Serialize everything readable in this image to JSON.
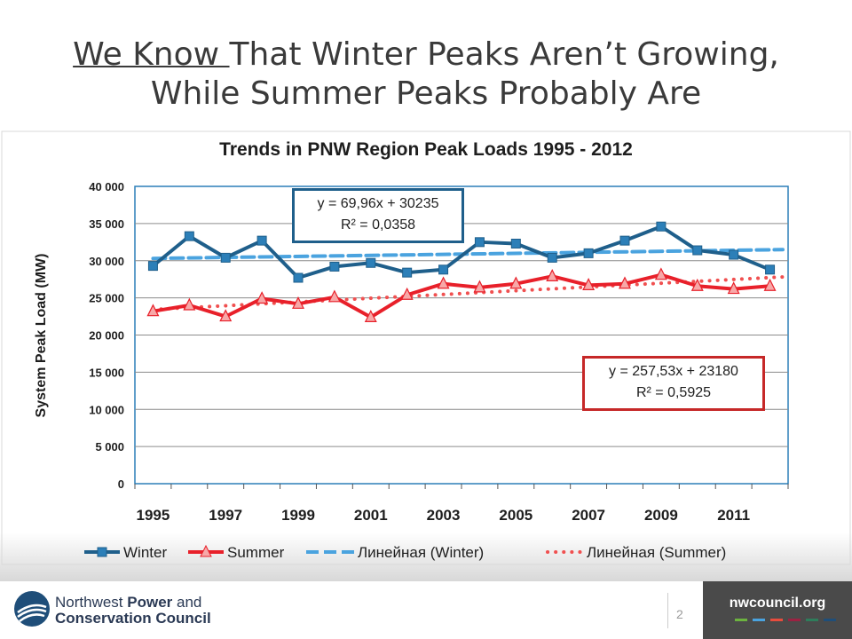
{
  "slide": {
    "title_underlined": "We Know ",
    "title_rest_line1": "That Winter Peaks Aren’t Growing,",
    "title_line2": "While Summer Peaks Probably Are",
    "page_number": "2"
  },
  "footer": {
    "org_line1_normal": "Northwest ",
    "org_line1_bold": "Power",
    "org_line1_end": " and",
    "org_line2": "Conservation Council",
    "url": "nwcouncil.org",
    "dash_colors": [
      "#6cb33f",
      "#4aa3df",
      "#e84c3d",
      "#9b2242",
      "#2e7d5b",
      "#1f4e79"
    ]
  },
  "annotations": {
    "winter_eq": "y = 69,96x + 30235",
    "winter_r2": "R² = 0,0358",
    "summer_eq": "y = 257,53x + 23180",
    "summer_r2": "R² = 0,5925"
  },
  "chart_data": {
    "type": "line",
    "title": "Trends in PNW Region Peak Loads 1995 - 2012",
    "ylabel": "System Peak Load (MW)",
    "xlabel": "",
    "ylim": [
      0,
      40000
    ],
    "yticks": [
      "0",
      "5 000",
      "10 000",
      "15 000",
      "20 000",
      "25 000",
      "30 000",
      "35 000",
      "40 000"
    ],
    "x": [
      1995,
      1996,
      1997,
      1998,
      1999,
      2000,
      2001,
      2002,
      2003,
      2004,
      2005,
      2006,
      2007,
      2008,
      2009,
      2010,
      2011,
      2012
    ],
    "xtick_labels": [
      "1995",
      "1997",
      "1999",
      "2001",
      "2003",
      "2005",
      "2007",
      "2009",
      "2011"
    ],
    "grid": true,
    "legend_position": "bottom",
    "series": [
      {
        "name": "Winter",
        "color": "#1f5f8b",
        "marker": "square",
        "values": [
          29300,
          33300,
          30400,
          32700,
          27700,
          29200,
          29700,
          28400,
          28800,
          32500,
          32300,
          30400,
          31000,
          32700,
          34600,
          31400,
          30800,
          28800
        ]
      },
      {
        "name": "Summer",
        "color": "#e8202a",
        "marker": "triangle",
        "values": [
          23200,
          24000,
          22500,
          24900,
          24200,
          25100,
          22400,
          25400,
          26900,
          26400,
          26900,
          27900,
          26700,
          26900,
          28100,
          26600,
          26200,
          26600
        ]
      }
    ],
    "trendlines": [
      {
        "name": "Линейная (Winter)",
        "color": "#4aa3df",
        "style": "dashed",
        "start": 30305,
        "end": 31494
      },
      {
        "name": "Линейная (Summer)",
        "color": "#f05050",
        "style": "dotted",
        "start": 23438,
        "end": 27815
      }
    ]
  }
}
